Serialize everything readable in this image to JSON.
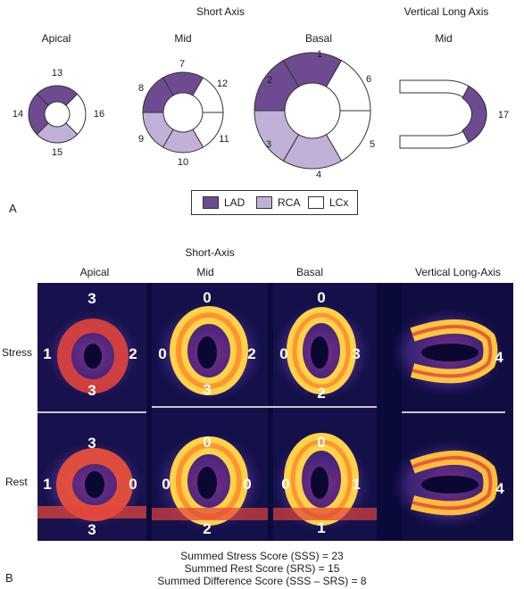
{
  "panel_a": {
    "letter": "A",
    "short_axis_title": "Short Axis",
    "vla_title": "Vertical Long Axis",
    "slices": {
      "apical": "Apical",
      "mid": "Mid",
      "basal": "Basal",
      "vla_mid": "Mid"
    },
    "segments": {
      "s1": "1",
      "s2": "2",
      "s3": "3",
      "s4": "4",
      "s5": "5",
      "s6": "6",
      "s7": "7",
      "s8": "8",
      "s9": "9",
      "s10": "10",
      "s11": "11",
      "s12": "12",
      "s13": "13",
      "s14": "14",
      "s15": "15",
      "s16": "16",
      "s17": "17"
    },
    "legend": {
      "lad": "LAD",
      "rca": "RCA",
      "lcx": "LCx"
    },
    "colors": {
      "lad": "#6e4b91",
      "rca": "#c1b1d9",
      "lcx": "#ffffff"
    }
  },
  "panel_b": {
    "letter": "B",
    "short_axis_title": "Short-Axis",
    "cols": {
      "apical": "Apical",
      "mid": "Mid",
      "basal": "Basal",
      "vla": "Vertical Long-Axis"
    },
    "rows": {
      "stress": "Stress",
      "rest": "Rest"
    },
    "scores": {
      "stress_apical": {
        "top": "3",
        "left": "1",
        "right": "2",
        "bottom": "3"
      },
      "stress_mid": {
        "top": "0",
        "left": "0",
        "right": "2",
        "bottom": "3"
      },
      "stress_basal": {
        "top": "0",
        "left": "0",
        "right": "3",
        "bottom": "2"
      },
      "stress_vla": {
        "right": "4"
      },
      "rest_apical": {
        "top": "3",
        "left": "1",
        "right": "0",
        "bottom": "3"
      },
      "rest_mid": {
        "top": "0",
        "left": "0",
        "right": "0",
        "bottom": "2"
      },
      "rest_basal": {
        "top": "0",
        "left": "0",
        "right": "1",
        "bottom": "1"
      },
      "rest_vla": {
        "right": "4"
      }
    },
    "summary": {
      "sss": "Summed Stress Score (SSS) = 23",
      "srs": "Summed Rest Score (SRS) = 15",
      "sds": "Summed Difference Score (SSS – SRS) = 8"
    }
  }
}
